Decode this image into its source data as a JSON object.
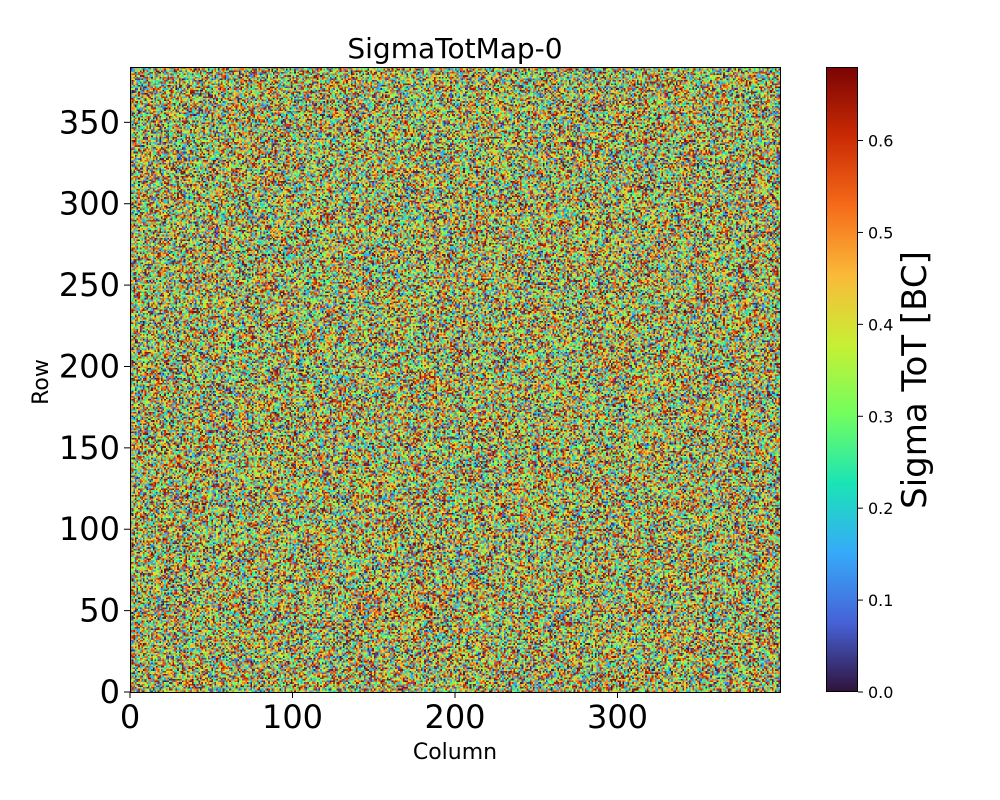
{
  "chart_data": {
    "type": "heatmap",
    "title": "SigmaTotMap-0",
    "xlabel": "Column",
    "ylabel": "Row",
    "xlim": [
      0,
      400
    ],
    "ylim": [
      0,
      384
    ],
    "n_columns": 400,
    "n_rows": 384,
    "x_ticks": [
      0,
      100,
      200,
      300
    ],
    "y_ticks": [
      0,
      50,
      100,
      150,
      200,
      250,
      300,
      350
    ],
    "value_distribution": {
      "description": "random noise, values spread uniformly over the color range",
      "min": 0.0,
      "max": 0.68
    },
    "colorbar": {
      "label": "Sigma ToT [BC]",
      "min": 0.0,
      "max": 0.68,
      "ticks": [
        0.0,
        0.1,
        0.2,
        0.3,
        0.4,
        0.5,
        0.6
      ],
      "tick_labels": [
        "0.0",
        "0.1",
        "0.2",
        "0.3",
        "0.4",
        "0.5",
        "0.6"
      ],
      "colormap": "turbo",
      "colormap_stops": [
        "#30123b",
        "#4662d7",
        "#36aaf9",
        "#1ae4b6",
        "#72fe5e",
        "#c7ef34",
        "#faba39",
        "#f66b19",
        "#ca2a04",
        "#7a0403"
      ]
    }
  }
}
